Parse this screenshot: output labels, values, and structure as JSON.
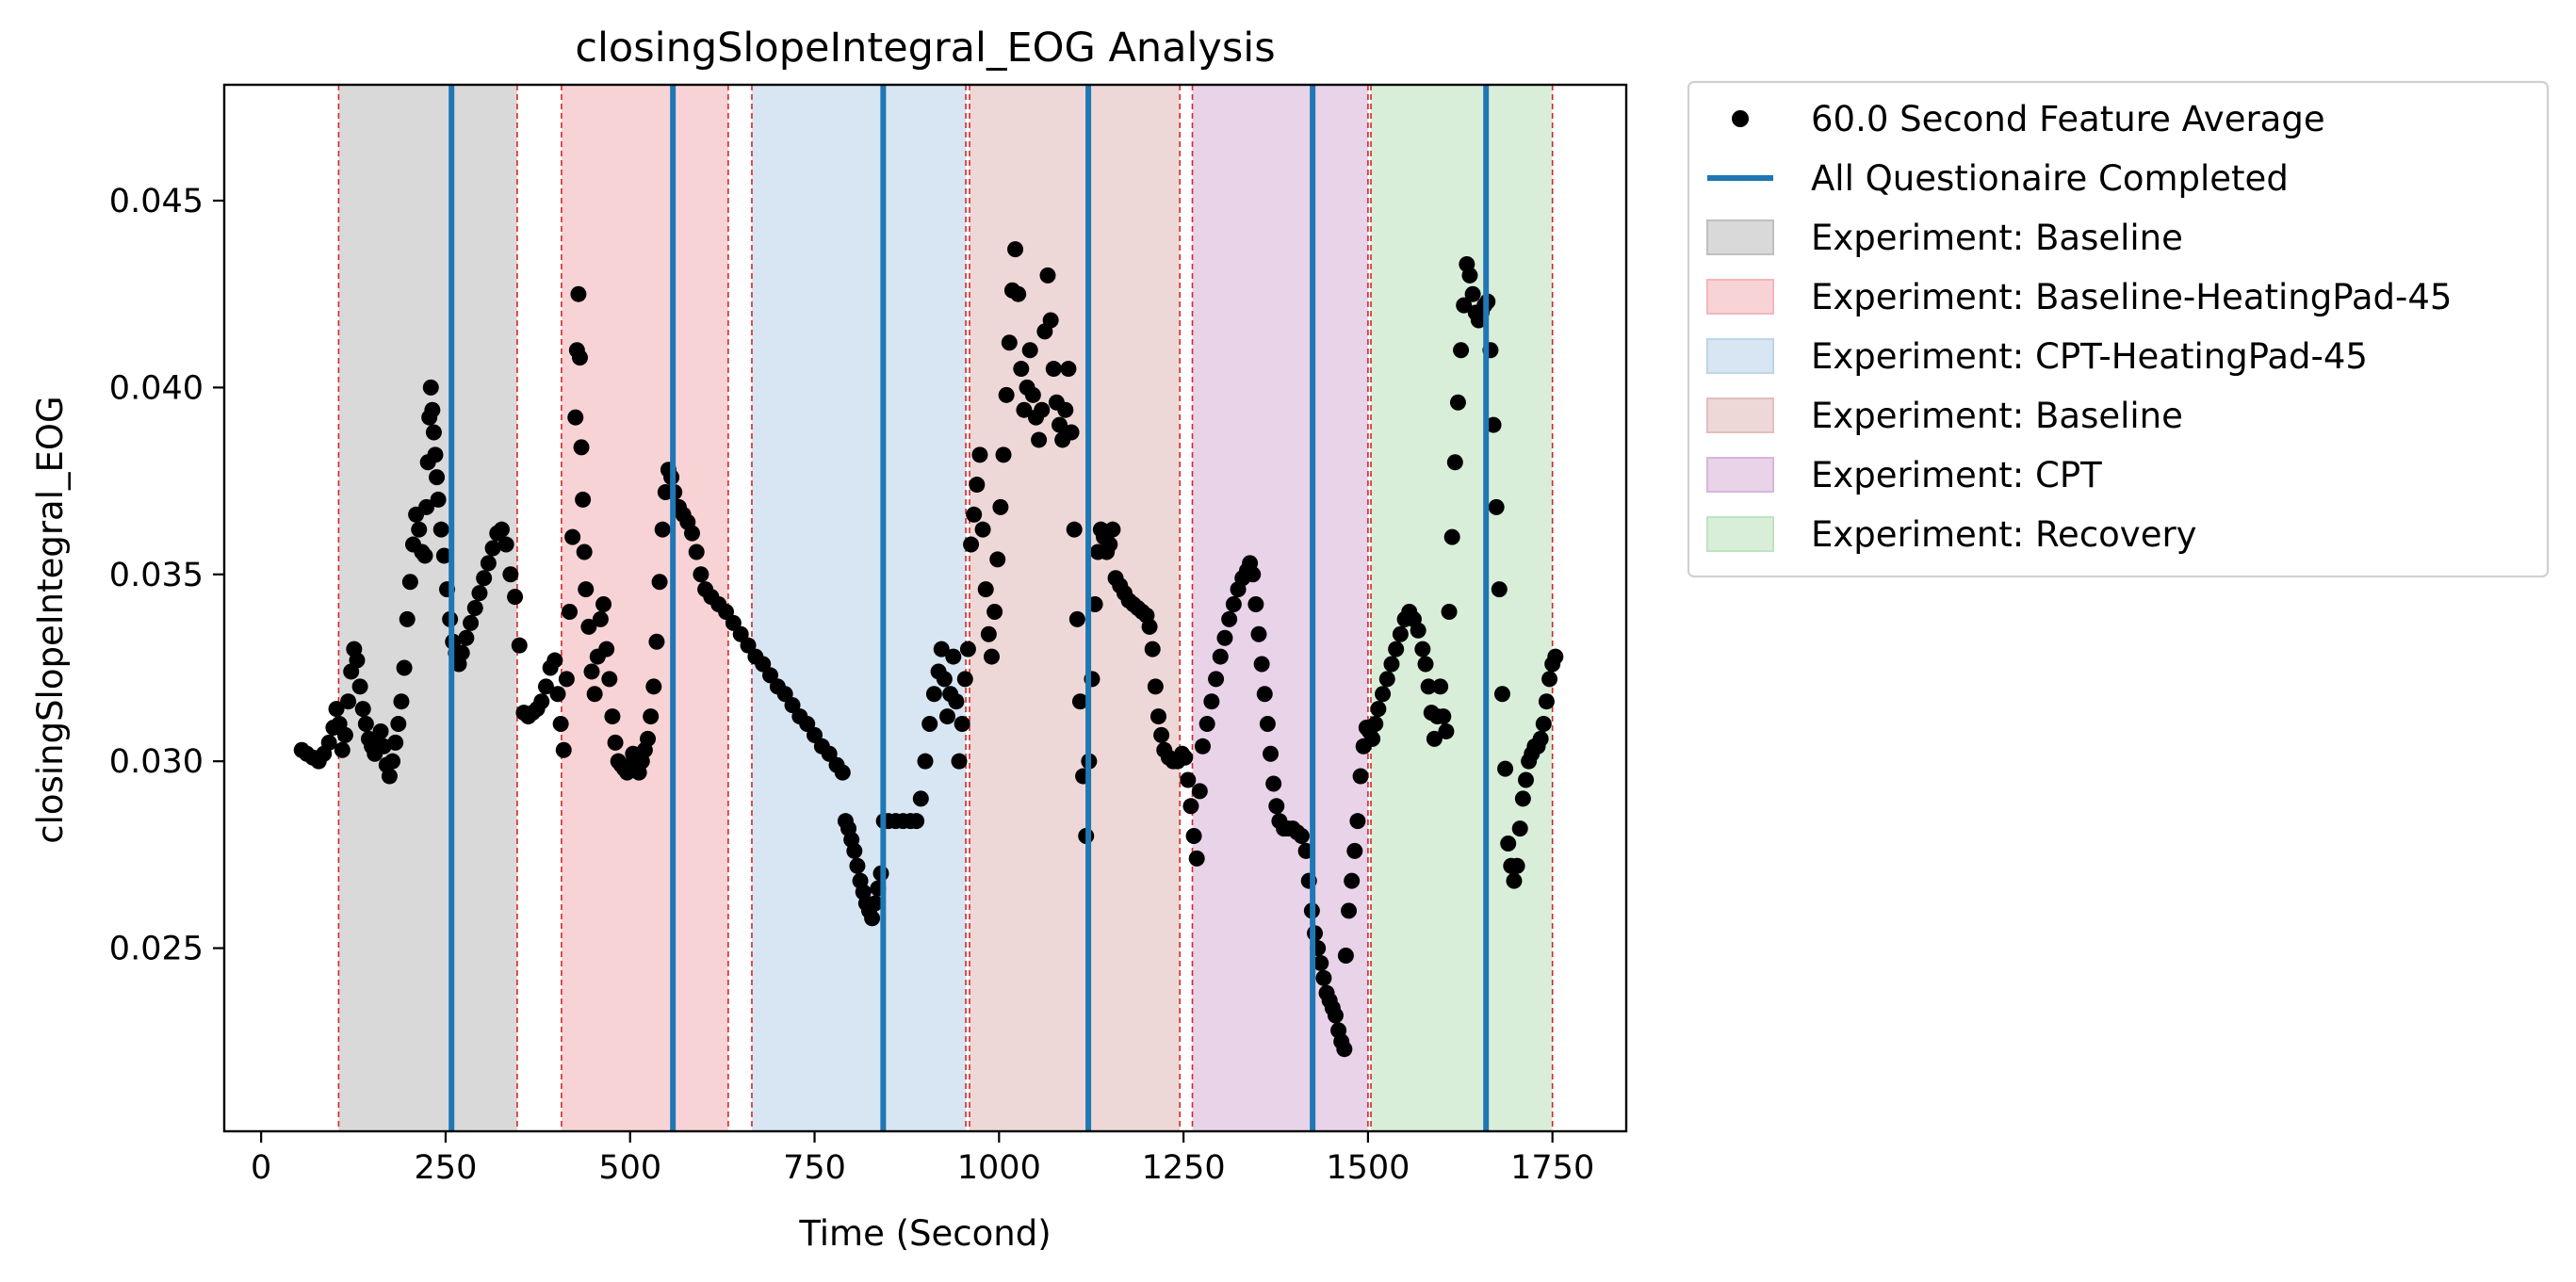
{
  "chart_data": {
    "type": "scatter",
    "title": "closingSlopeIntegral_EOG Analysis",
    "xlabel": "Time (Second)",
    "ylabel": "closingSlopeIntegral_EOG",
    "xlim": [
      -50,
      1850
    ],
    "ylim": [
      0.0201,
      0.0481
    ],
    "x_ticks": [
      0,
      250,
      500,
      750,
      1000,
      1250,
      1500,
      1750
    ],
    "y_ticks": [
      0.025,
      0.03,
      0.035,
      0.04,
      0.045
    ],
    "x_tick_labels": [
      "0",
      "250",
      "500",
      "750",
      "1000",
      "1250",
      "1500",
      "1750"
    ],
    "y_tick_labels": [
      "0.025",
      "0.030",
      "0.035",
      "0.040",
      "0.045"
    ],
    "legend_placement": "outside-right-top",
    "grid": false,
    "colors": {
      "points": "#000000",
      "questionnaire": "#1f77b4",
      "boundary": "#d62728"
    },
    "legend": [
      {
        "label": "60.0 Second Feature Average",
        "kind": "marker",
        "color": "#000000"
      },
      {
        "label": "All Questionaire Completed",
        "kind": "line",
        "color": "#1f77b4"
      },
      {
        "label": "Experiment: Baseline",
        "kind": "patch",
        "color": "#bfbfbf"
      },
      {
        "label": "Experiment: Baseline-HeatingPad-45",
        "kind": "patch",
        "color": "#f4b6bb"
      },
      {
        "label": "Experiment: CPT-HeatingPad-45",
        "kind": "patch",
        "color": "#bcd6ea"
      },
      {
        "label": "Experiment: Baseline",
        "kind": "patch",
        "color": "#e3bdbd"
      },
      {
        "label": "Experiment: CPT",
        "kind": "patch",
        "color": "#d9b5da"
      },
      {
        "label": "Experiment: Recovery",
        "kind": "patch",
        "color": "#bfe3bf"
      }
    ],
    "regions": [
      {
        "name": "Experiment: Baseline",
        "start": 105,
        "end": 347,
        "color": "#bfbfbf"
      },
      {
        "name": "Experiment: Baseline-HeatingPad-45",
        "start": 407,
        "end": 633,
        "color": "#f4b6bb"
      },
      {
        "name": "Experiment: CPT-HeatingPad-45",
        "start": 665,
        "end": 955,
        "color": "#bcd6ea"
      },
      {
        "name": "Experiment: Baseline",
        "start": 960,
        "end": 1245,
        "color": "#e3bdbd"
      },
      {
        "name": "Experiment: CPT",
        "start": 1262,
        "end": 1500,
        "color": "#d9b5da"
      },
      {
        "name": "Experiment: Recovery",
        "start": 1504,
        "end": 1750,
        "color": "#bfe3bf"
      }
    ],
    "questionnaire_completed_x": [
      258,
      558,
      843,
      1121,
      1425,
      1660
    ],
    "series_points": [
      [
        55,
        0.0303
      ],
      [
        62,
        0.0302
      ],
      [
        70,
        0.0301
      ],
      [
        78,
        0.03
      ],
      [
        85,
        0.0302
      ],
      [
        92,
        0.0305
      ],
      [
        98,
        0.0309
      ],
      [
        102,
        0.0314
      ],
      [
        106,
        0.031
      ],
      [
        110,
        0.0303
      ],
      [
        114,
        0.0307
      ],
      [
        118,
        0.0316
      ],
      [
        122,
        0.0324
      ],
      [
        126,
        0.033
      ],
      [
        130,
        0.0327
      ],
      [
        134,
        0.032
      ],
      [
        138,
        0.0314
      ],
      [
        142,
        0.031
      ],
      [
        146,
        0.0306
      ],
      [
        150,
        0.0304
      ],
      [
        154,
        0.0302
      ],
      [
        158,
        0.0305
      ],
      [
        162,
        0.0308
      ],
      [
        166,
        0.0304
      ],
      [
        170,
        0.0299
      ],
      [
        174,
        0.0296
      ],
      [
        178,
        0.03
      ],
      [
        182,
        0.0305
      ],
      [
        186,
        0.031
      ],
      [
        190,
        0.0316
      ],
      [
        194,
        0.0325
      ],
      [
        198,
        0.0338
      ],
      [
        202,
        0.0348
      ],
      [
        206,
        0.0358
      ],
      [
        210,
        0.0366
      ],
      [
        214,
        0.0362
      ],
      [
        218,
        0.0356
      ],
      [
        222,
        0.0355
      ],
      [
        224,
        0.0368
      ],
      [
        226,
        0.038
      ],
      [
        228,
        0.0392
      ],
      [
        230,
        0.04
      ],
      [
        232,
        0.0394
      ],
      [
        234,
        0.0388
      ],
      [
        236,
        0.0382
      ],
      [
        238,
        0.0376
      ],
      [
        240,
        0.037
      ],
      [
        244,
        0.0362
      ],
      [
        248,
        0.0355
      ],
      [
        252,
        0.0346
      ],
      [
        256,
        0.0338
      ],
      [
        260,
        0.0332
      ],
      [
        264,
        0.0329
      ],
      [
        268,
        0.0326
      ],
      [
        272,
        0.0329
      ],
      [
        278,
        0.0333
      ],
      [
        284,
        0.0337
      ],
      [
        290,
        0.0341
      ],
      [
        296,
        0.0345
      ],
      [
        302,
        0.0349
      ],
      [
        308,
        0.0353
      ],
      [
        314,
        0.0357
      ],
      [
        320,
        0.0361
      ],
      [
        326,
        0.0362
      ],
      [
        332,
        0.0358
      ],
      [
        338,
        0.035
      ],
      [
        344,
        0.0344
      ],
      [
        350,
        0.0331
      ],
      [
        356,
        0.0313
      ],
      [
        362,
        0.0312
      ],
      [
        368,
        0.0313
      ],
      [
        374,
        0.0314
      ],
      [
        380,
        0.0316
      ],
      [
        386,
        0.032
      ],
      [
        392,
        0.0325
      ],
      [
        398,
        0.0327
      ],
      [
        402,
        0.0318
      ],
      [
        406,
        0.031
      ],
      [
        410,
        0.0303
      ],
      [
        414,
        0.0322
      ],
      [
        418,
        0.034
      ],
      [
        422,
        0.036
      ],
      [
        426,
        0.0392
      ],
      [
        428,
        0.041
      ],
      [
        430,
        0.0425
      ],
      [
        432,
        0.0408
      ],
      [
        434,
        0.0384
      ],
      [
        436,
        0.037
      ],
      [
        438,
        0.0356
      ],
      [
        440,
        0.0346
      ],
      [
        444,
        0.0336
      ],
      [
        448,
        0.0324
      ],
      [
        452,
        0.0318
      ],
      [
        456,
        0.0328
      ],
      [
        460,
        0.0338
      ],
      [
        464,
        0.0342
      ],
      [
        468,
        0.033
      ],
      [
        472,
        0.0322
      ],
      [
        476,
        0.0312
      ],
      [
        480,
        0.0305
      ],
      [
        484,
        0.03
      ],
      [
        488,
        0.0299
      ],
      [
        492,
        0.0298
      ],
      [
        496,
        0.0297
      ],
      [
        500,
        0.0299
      ],
      [
        504,
        0.0302
      ],
      [
        508,
        0.0298
      ],
      [
        512,
        0.0297
      ],
      [
        516,
        0.03
      ],
      [
        520,
        0.0303
      ],
      [
        524,
        0.0306
      ],
      [
        528,
        0.0312
      ],
      [
        532,
        0.032
      ],
      [
        536,
        0.0332
      ],
      [
        540,
        0.0348
      ],
      [
        544,
        0.0362
      ],
      [
        548,
        0.0372
      ],
      [
        552,
        0.0378
      ],
      [
        556,
        0.0376
      ],
      [
        560,
        0.0372
      ],
      [
        566,
        0.0368
      ],
      [
        572,
        0.0366
      ],
      [
        578,
        0.0364
      ],
      [
        584,
        0.0361
      ],
      [
        590,
        0.0356
      ],
      [
        596,
        0.035
      ],
      [
        602,
        0.0346
      ],
      [
        610,
        0.0344
      ],
      [
        620,
        0.0342
      ],
      [
        630,
        0.034
      ],
      [
        640,
        0.0337
      ],
      [
        650,
        0.0334
      ],
      [
        660,
        0.0331
      ],
      [
        670,
        0.0328
      ],
      [
        680,
        0.0326
      ],
      [
        690,
        0.0323
      ],
      [
        700,
        0.032
      ],
      [
        710,
        0.0318
      ],
      [
        720,
        0.0315
      ],
      [
        730,
        0.0312
      ],
      [
        740,
        0.031
      ],
      [
        750,
        0.0307
      ],
      [
        760,
        0.0304
      ],
      [
        770,
        0.0302
      ],
      [
        780,
        0.0299
      ],
      [
        788,
        0.0297
      ],
      [
        792,
        0.0284
      ],
      [
        796,
        0.0282
      ],
      [
        800,
        0.0279
      ],
      [
        804,
        0.0276
      ],
      [
        808,
        0.0272
      ],
      [
        812,
        0.0268
      ],
      [
        816,
        0.0265
      ],
      [
        820,
        0.0262
      ],
      [
        824,
        0.026
      ],
      [
        828,
        0.0258
      ],
      [
        832,
        0.0262
      ],
      [
        836,
        0.0266
      ],
      [
        840,
        0.027
      ],
      [
        844,
        0.0284
      ],
      [
        850,
        0.0284
      ],
      [
        860,
        0.0284
      ],
      [
        870,
        0.0284
      ],
      [
        880,
        0.0284
      ],
      [
        888,
        0.0284
      ],
      [
        894,
        0.029
      ],
      [
        900,
        0.03
      ],
      [
        906,
        0.031
      ],
      [
        912,
        0.0318
      ],
      [
        918,
        0.0324
      ],
      [
        922,
        0.033
      ],
      [
        926,
        0.0322
      ],
      [
        930,
        0.0312
      ],
      [
        934,
        0.0318
      ],
      [
        938,
        0.0328
      ],
      [
        942,
        0.0316
      ],
      [
        946,
        0.03
      ],
      [
        950,
        0.031
      ],
      [
        954,
        0.0322
      ],
      [
        958,
        0.033
      ],
      [
        962,
        0.0358
      ],
      [
        966,
        0.0366
      ],
      [
        970,
        0.0374
      ],
      [
        974,
        0.0382
      ],
      [
        978,
        0.0362
      ],
      [
        982,
        0.0346
      ],
      [
        986,
        0.0334
      ],
      [
        990,
        0.0328
      ],
      [
        994,
        0.034
      ],
      [
        998,
        0.0354
      ],
      [
        1002,
        0.0368
      ],
      [
        1006,
        0.0382
      ],
      [
        1010,
        0.0398
      ],
      [
        1014,
        0.0412
      ],
      [
        1018,
        0.0426
      ],
      [
        1022,
        0.0437
      ],
      [
        1026,
        0.0425
      ],
      [
        1030,
        0.0405
      ],
      [
        1034,
        0.0394
      ],
      [
        1038,
        0.04
      ],
      [
        1042,
        0.041
      ],
      [
        1046,
        0.0398
      ],
      [
        1050,
        0.0392
      ],
      [
        1054,
        0.0386
      ],
      [
        1058,
        0.0394
      ],
      [
        1062,
        0.0415
      ],
      [
        1066,
        0.043
      ],
      [
        1070,
        0.0418
      ],
      [
        1074,
        0.0405
      ],
      [
        1078,
        0.0396
      ],
      [
        1082,
        0.039
      ],
      [
        1086,
        0.0386
      ],
      [
        1090,
        0.0394
      ],
      [
        1094,
        0.0405
      ],
      [
        1098,
        0.0388
      ],
      [
        1102,
        0.0362
      ],
      [
        1106,
        0.0338
      ],
      [
        1110,
        0.0316
      ],
      [
        1114,
        0.0296
      ],
      [
        1118,
        0.028
      ],
      [
        1122,
        0.03
      ],
      [
        1126,
        0.0322
      ],
      [
        1130,
        0.0342
      ],
      [
        1134,
        0.0356
      ],
      [
        1138,
        0.0362
      ],
      [
        1142,
        0.036
      ],
      [
        1146,
        0.0356
      ],
      [
        1150,
        0.0358
      ],
      [
        1154,
        0.0362
      ],
      [
        1158,
        0.0349
      ],
      [
        1164,
        0.0347
      ],
      [
        1170,
        0.0345
      ],
      [
        1176,
        0.0343
      ],
      [
        1182,
        0.0342
      ],
      [
        1188,
        0.0341
      ],
      [
        1194,
        0.034
      ],
      [
        1200,
        0.0339
      ],
      [
        1204,
        0.0336
      ],
      [
        1208,
        0.033
      ],
      [
        1212,
        0.032
      ],
      [
        1216,
        0.0312
      ],
      [
        1220,
        0.0307
      ],
      [
        1224,
        0.0303
      ],
      [
        1230,
        0.0301
      ],
      [
        1236,
        0.03
      ],
      [
        1242,
        0.03
      ],
      [
        1248,
        0.0302
      ],
      [
        1252,
        0.0301
      ],
      [
        1256,
        0.0295
      ],
      [
        1260,
        0.0288
      ],
      [
        1264,
        0.028
      ],
      [
        1268,
        0.0274
      ],
      [
        1272,
        0.0292
      ],
      [
        1276,
        0.0304
      ],
      [
        1282,
        0.031
      ],
      [
        1288,
        0.0316
      ],
      [
        1294,
        0.0322
      ],
      [
        1300,
        0.0328
      ],
      [
        1306,
        0.0333
      ],
      [
        1312,
        0.0338
      ],
      [
        1318,
        0.0342
      ],
      [
        1324,
        0.0346
      ],
      [
        1330,
        0.0349
      ],
      [
        1336,
        0.0351
      ],
      [
        1340,
        0.0353
      ],
      [
        1344,
        0.035
      ],
      [
        1348,
        0.0342
      ],
      [
        1352,
        0.0334
      ],
      [
        1356,
        0.0326
      ],
      [
        1360,
        0.0318
      ],
      [
        1364,
        0.031
      ],
      [
        1368,
        0.0302
      ],
      [
        1372,
        0.0294
      ],
      [
        1376,
        0.0288
      ],
      [
        1380,
        0.0284
      ],
      [
        1386,
        0.0282
      ],
      [
        1392,
        0.0282
      ],
      [
        1398,
        0.0282
      ],
      [
        1404,
        0.0281
      ],
      [
        1410,
        0.028
      ],
      [
        1416,
        0.0276
      ],
      [
        1420,
        0.0268
      ],
      [
        1424,
        0.026
      ],
      [
        1428,
        0.0254
      ],
      [
        1432,
        0.025
      ],
      [
        1436,
        0.0246
      ],
      [
        1440,
        0.0242
      ],
      [
        1444,
        0.0238
      ],
      [
        1448,
        0.0236
      ],
      [
        1452,
        0.0234
      ],
      [
        1456,
        0.0232
      ],
      [
        1460,
        0.0228
      ],
      [
        1464,
        0.0225
      ],
      [
        1468,
        0.0223
      ],
      [
        1470,
        0.0248
      ],
      [
        1474,
        0.026
      ],
      [
        1478,
        0.0268
      ],
      [
        1482,
        0.0276
      ],
      [
        1486,
        0.0284
      ],
      [
        1490,
        0.0296
      ],
      [
        1494,
        0.0304
      ],
      [
        1498,
        0.0309
      ],
      [
        1502,
        0.0308
      ],
      [
        1506,
        0.0306
      ],
      [
        1510,
        0.031
      ],
      [
        1514,
        0.0314
      ],
      [
        1520,
        0.0318
      ],
      [
        1526,
        0.0322
      ],
      [
        1532,
        0.0326
      ],
      [
        1538,
        0.033
      ],
      [
        1544,
        0.0334
      ],
      [
        1550,
        0.0338
      ],
      [
        1556,
        0.034
      ],
      [
        1562,
        0.0338
      ],
      [
        1568,
        0.0335
      ],
      [
        1574,
        0.033
      ],
      [
        1578,
        0.0326
      ],
      [
        1582,
        0.032
      ],
      [
        1586,
        0.0313
      ],
      [
        1590,
        0.0306
      ],
      [
        1594,
        0.0312
      ],
      [
        1598,
        0.032
      ],
      [
        1602,
        0.0312
      ],
      [
        1606,
        0.0308
      ],
      [
        1610,
        0.034
      ],
      [
        1614,
        0.036
      ],
      [
        1618,
        0.038
      ],
      [
        1622,
        0.0396
      ],
      [
        1626,
        0.041
      ],
      [
        1630,
        0.0422
      ],
      [
        1634,
        0.0433
      ],
      [
        1638,
        0.043
      ],
      [
        1642,
        0.0425
      ],
      [
        1646,
        0.042
      ],
      [
        1650,
        0.0418
      ],
      [
        1654,
        0.042
      ],
      [
        1658,
        0.0422
      ],
      [
        1662,
        0.0423
      ],
      [
        1666,
        0.041
      ],
      [
        1670,
        0.039
      ],
      [
        1674,
        0.0368
      ],
      [
        1678,
        0.0346
      ],
      [
        1682,
        0.0318
      ],
      [
        1686,
        0.0298
      ],
      [
        1690,
        0.0278
      ],
      [
        1694,
        0.0272
      ],
      [
        1698,
        0.0268
      ],
      [
        1702,
        0.0272
      ],
      [
        1706,
        0.0282
      ],
      [
        1710,
        0.029
      ],
      [
        1714,
        0.0295
      ],
      [
        1718,
        0.03
      ],
      [
        1722,
        0.0302
      ],
      [
        1726,
        0.0304
      ],
      [
        1730,
        0.0304
      ],
      [
        1734,
        0.0306
      ],
      [
        1738,
        0.031
      ],
      [
        1742,
        0.0316
      ],
      [
        1746,
        0.0322
      ],
      [
        1750,
        0.0326
      ],
      [
        1754,
        0.0328
      ]
    ]
  }
}
